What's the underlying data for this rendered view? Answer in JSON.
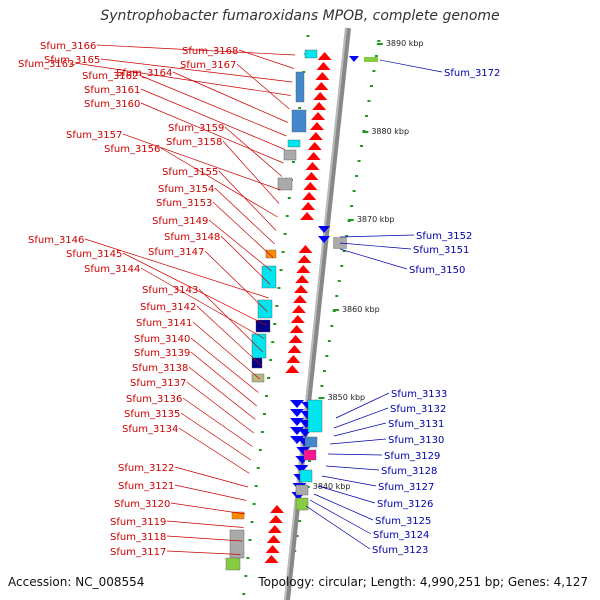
{
  "title": "Syntrophobacter fumaroxidans MPOB, complete genome",
  "accession": "Accession: NC_008554",
  "topology": "Topology: circular; Length: 4,990,251 bp; Genes: 4,127",
  "kbp_marks": [
    "3890 kbp",
    "3880 kbp",
    "3870 kbp",
    "3860 kbp",
    "3850 kbp",
    "3840 kbp"
  ],
  "left_genes": [
    "Sfum_3166",
    "Sfum_3168",
    "Sfum_3165",
    "Sfum_3163",
    "Sfum_3167",
    "Sfum_3164",
    "Sfum_3162",
    "Sfum_3161",
    "Sfum_3160",
    "Sfum_3159",
    "Sfum_3157",
    "Sfum_3158",
    "Sfum_3156",
    "Sfum_3155",
    "Sfum_3154",
    "Sfum_3153",
    "Sfum_3149",
    "Sfum_3148",
    "Sfum_3146",
    "Sfum_3147",
    "Sfum_3145",
    "Sfum_3144",
    "Sfum_3143",
    "Sfum_3142",
    "Sfum_3141",
    "Sfum_3140",
    "Sfum_3139",
    "Sfum_3138",
    "Sfum_3137",
    "Sfum_3136",
    "Sfum_3135",
    "Sfum_3134",
    "Sfum_3122",
    "Sfum_3121",
    "Sfum_3120",
    "Sfum_3119",
    "Sfum_3118",
    "Sfum_3117"
  ],
  "right_genes": [
    "Sfum_3172",
    "Sfum_3152",
    "Sfum_3151",
    "Sfum_3150",
    "Sfum_3133",
    "Sfum_3132",
    "Sfum_3131",
    "Sfum_3130",
    "Sfum_3129",
    "Sfum_3128",
    "Sfum_3127",
    "Sfum_3126",
    "Sfum_3125",
    "Sfum_3124",
    "Sfum_3123"
  ]
}
